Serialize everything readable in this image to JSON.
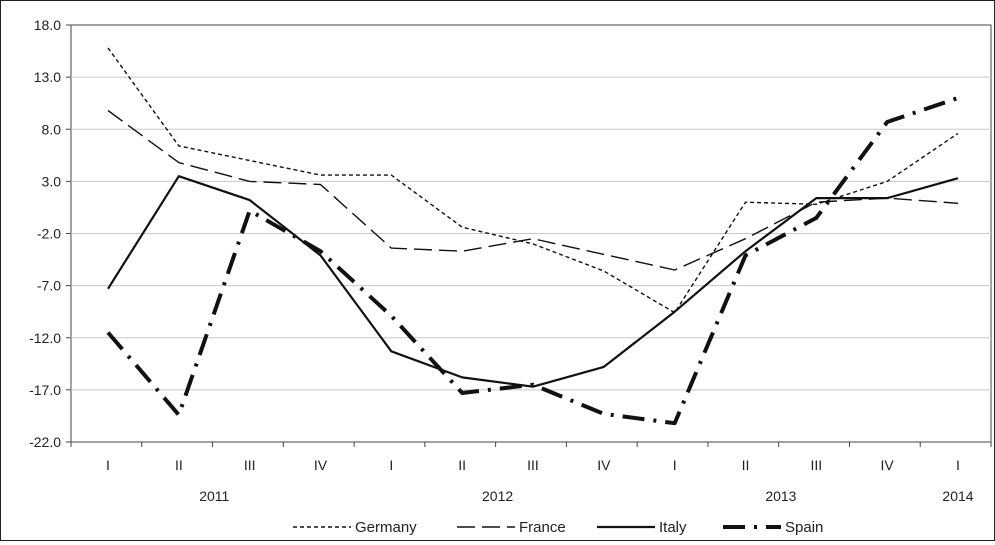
{
  "chart_data": {
    "type": "line",
    "categories": [
      "I",
      "II",
      "III",
      "IV",
      "I",
      "II",
      "III",
      "IV",
      "I",
      "II",
      "III",
      "IV",
      "I"
    ],
    "year_labels": [
      {
        "label": "2011",
        "category_index": 1.5
      },
      {
        "label": "2012",
        "category_index": 5.5
      },
      {
        "label": "2013",
        "category_index": 9.5
      },
      {
        "label": "2014",
        "category_index": 12
      }
    ],
    "ylim": [
      -22.0,
      18.0
    ],
    "yticks": [
      "18.0",
      "13.0",
      "8.0",
      "3.0",
      "-2.0",
      "-7.0",
      "-12.0",
      "-17.0",
      "-22.0"
    ],
    "grid": true,
    "legend_position": "bottom",
    "series": [
      {
        "name": "Germany",
        "style": "dotted",
        "values": [
          15.8,
          6.4,
          5.0,
          3.6,
          3.6,
          -1.4,
          -3.0,
          -5.6,
          -9.6,
          1.0,
          0.8,
          3.0,
          7.6
        ]
      },
      {
        "name": "France",
        "style": "dashed",
        "values": [
          9.8,
          4.8,
          3.0,
          2.7,
          -3.4,
          -3.7,
          -2.5,
          -4.0,
          -5.5,
          -2.5,
          1.0,
          1.4,
          0.9
        ]
      },
      {
        "name": "Italy",
        "style": "solid",
        "values": [
          -7.3,
          3.5,
          1.2,
          -4.1,
          -13.3,
          -15.8,
          -16.7,
          -14.8,
          -9.5,
          -3.7,
          1.4,
          1.4,
          3.3
        ]
      },
      {
        "name": "Spain",
        "style": "dash-dot",
        "values": [
          -11.5,
          -19.4,
          0.2,
          -3.7,
          -9.9,
          -17.3,
          -16.5,
          -19.3,
          -20.2,
          -4.1,
          -0.5,
          8.7,
          11.0
        ]
      }
    ]
  }
}
